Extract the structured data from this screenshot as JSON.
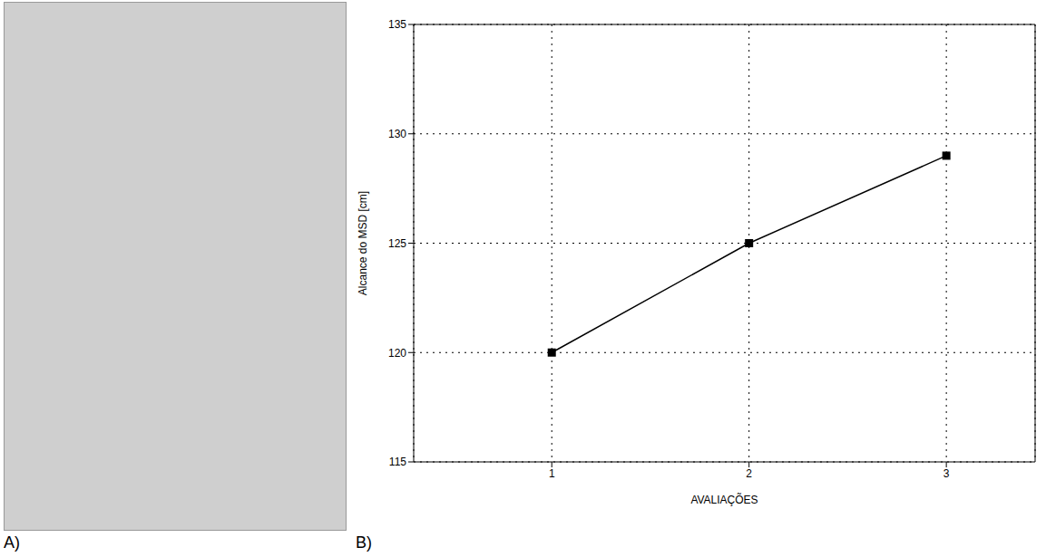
{
  "panel_labels": [
    "A)",
    "B)"
  ],
  "chart_data": {
    "type": "line",
    "x": [
      1,
      2,
      3
    ],
    "values": [
      120,
      125,
      129
    ],
    "x_label": "AVALIAÇÕES",
    "y_label": "Alcance do MSD [cm]",
    "xlim": [
      0.3,
      3.45
    ],
    "xticks": [
      1,
      2,
      3
    ],
    "ylim": [
      115,
      135
    ],
    "yticks": [
      115,
      120,
      125,
      130,
      135
    ],
    "grid": true,
    "color": "#000000",
    "marker": "square",
    "line_style": "solid"
  }
}
